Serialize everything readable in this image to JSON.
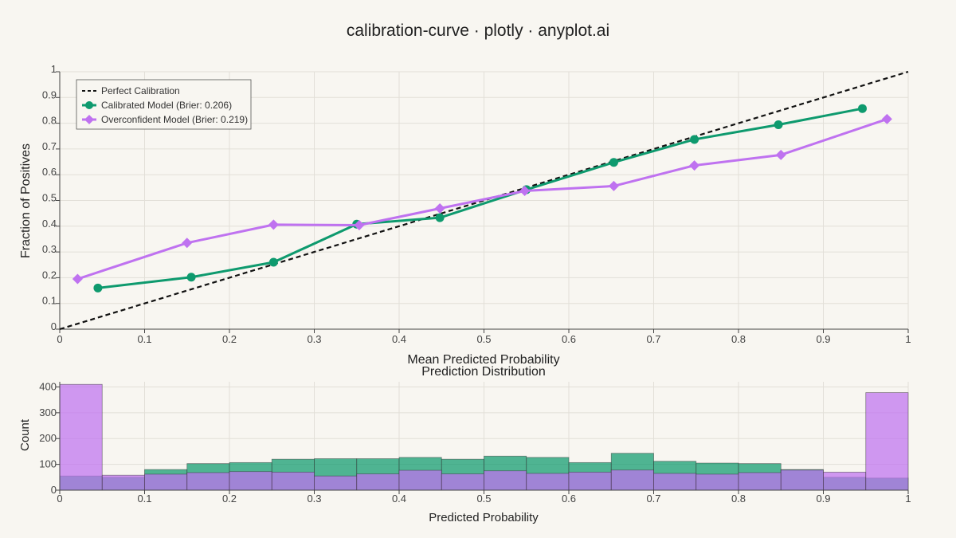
{
  "title": "calibration-curve · plotly · anyplot.ai",
  "colors": {
    "background": "#f8f6f1",
    "calibrated": "#0e9a6e",
    "overconfident": "#bf72f0",
    "perfect": "#111111",
    "grid": "#e2dfd8"
  },
  "chart_data": [
    {
      "type": "line",
      "xlabel": "Mean Predicted Probability",
      "ylabel": "Fraction of Positives",
      "xlim": [
        0,
        1
      ],
      "ylim": [
        0,
        1
      ],
      "xticks": [
        "0",
        "0.1",
        "0.2",
        "0.3",
        "0.4",
        "0.5",
        "0.6",
        "0.7",
        "0.8",
        "0.9",
        "1"
      ],
      "yticks": [
        "0",
        "0.1",
        "0.2",
        "0.3",
        "0.4",
        "0.5",
        "0.6",
        "0.7",
        "0.8",
        "0.9",
        "1"
      ],
      "grid": true,
      "legend_position": "top-left",
      "series": [
        {
          "name": "Perfect Calibration",
          "style": "dashed",
          "marker": "none",
          "x": [
            0,
            1
          ],
          "y": [
            0,
            1
          ]
        },
        {
          "name": "Calibrated Model (Brier: 0.206)",
          "style": "solid",
          "marker": "circle",
          "x": [
            0.045,
            0.155,
            0.252,
            0.35,
            0.448,
            0.55,
            0.653,
            0.748,
            0.847,
            0.946
          ],
          "y": [
            0.16,
            0.202,
            0.26,
            0.408,
            0.433,
            0.542,
            0.648,
            0.737,
            0.794,
            0.857
          ]
        },
        {
          "name": "Overconfident Model (Brier: 0.219)",
          "style": "solid",
          "marker": "diamond",
          "x": [
            0.021,
            0.15,
            0.252,
            0.353,
            0.448,
            0.548,
            0.653,
            0.748,
            0.85,
            0.975
          ],
          "y": [
            0.195,
            0.335,
            0.406,
            0.404,
            0.469,
            0.537,
            0.556,
            0.636,
            0.677,
            0.816
          ]
        }
      ]
    },
    {
      "type": "bar",
      "title": "Prediction Distribution",
      "xlabel": "Predicted Probability",
      "ylabel": "Count",
      "xlim": [
        0,
        1
      ],
      "ylim": [
        0,
        420
      ],
      "xticks": [
        "0",
        "0.1",
        "0.2",
        "0.3",
        "0.4",
        "0.5",
        "0.6",
        "0.7",
        "0.8",
        "0.9",
        "1"
      ],
      "yticks": [
        "0",
        "100",
        "200",
        "300",
        "400"
      ],
      "bin_width": 0.05,
      "categories": [
        "0-0.05",
        "0.05-0.1",
        "0.1-0.15",
        "0.15-0.2",
        "0.2-0.25",
        "0.25-0.3",
        "0.3-0.35",
        "0.35-0.4",
        "0.4-0.45",
        "0.45-0.5",
        "0.5-0.55",
        "0.55-0.6",
        "0.6-0.65",
        "0.65-0.7",
        "0.7-0.75",
        "0.75-0.8",
        "0.8-0.85",
        "0.85-0.9",
        "0.9-0.95",
        "0.95-1"
      ],
      "series": [
        {
          "name": "Calibrated Model",
          "values": [
            55,
            50,
            80,
            103,
            107,
            120,
            122,
            122,
            127,
            120,
            132,
            127,
            107,
            143,
            112,
            105,
            103,
            80,
            50,
            47
          ]
        },
        {
          "name": "Overconfident Model",
          "values": [
            410,
            58,
            62,
            68,
            72,
            70,
            55,
            63,
            77,
            63,
            75,
            65,
            70,
            78,
            65,
            62,
            68,
            78,
            70,
            378
          ]
        }
      ]
    }
  ]
}
